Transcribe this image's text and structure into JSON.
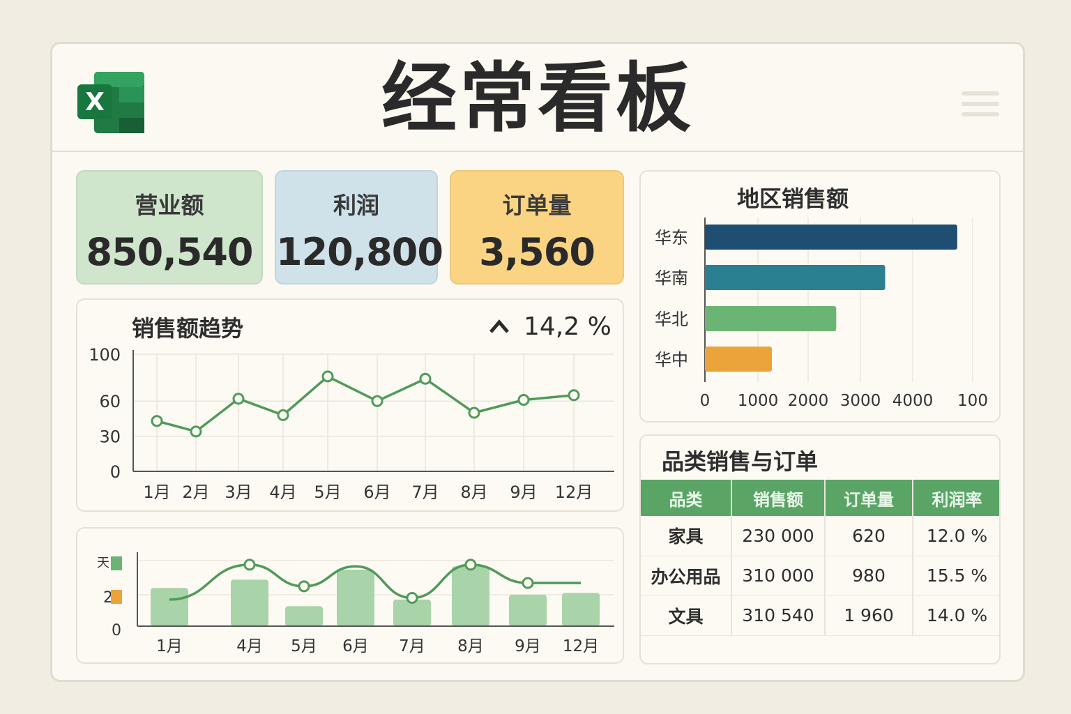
{
  "header": {
    "title": "经常看板",
    "logo_letter": "X"
  },
  "kpis": [
    {
      "label": "营业额",
      "value": "850,540",
      "color": "#cfe6cc"
    },
    {
      "label": "利润",
      "value": "120,800",
      "color": "#cfe2ea"
    },
    {
      "label": "订单量",
      "value": "3,560",
      "color": "#fbd483"
    }
  ],
  "trend": {
    "title": "销售额趋势",
    "change_label": "14,2 %"
  },
  "region": {
    "title": "地区销售额"
  },
  "mix": {
    "legend": [
      "天",
      "2"
    ]
  },
  "category_table": {
    "title": "品类销售与订单",
    "headers": [
      "品类",
      "销售额",
      "订单量",
      "利润率"
    ],
    "rows": [
      [
        "家具",
        "230 000",
        "620",
        "12.0 %"
      ],
      [
        "办公用品",
        "310 000",
        "980",
        "15.5 %"
      ],
      [
        "文具",
        "310 540",
        "1 960",
        "14.0 %"
      ]
    ]
  },
  "colors": {
    "green": "#4f9a5a",
    "dark_blue": "#1f4e73",
    "teal": "#2a7f90",
    "light_green": "#6bb574",
    "orange": "#eba43a",
    "bar_green": "#a9d3a8"
  },
  "chart_data": [
    {
      "type": "line",
      "title": "销售额趋势",
      "x": [
        "1月",
        "2月",
        "3月",
        "4月",
        "5月",
        "6月",
        "7月",
        "8月",
        "9月",
        "12月"
      ],
      "series": [
        {
          "values": [
            43,
            34,
            62,
            48,
            81,
            60,
            79,
            50,
            61,
            65
          ]
        }
      ],
      "yticks": [
        0,
        30,
        60,
        100
      ],
      "ylim": [
        0,
        100
      ],
      "grid": true
    },
    {
      "type": "bar",
      "title": "地区销售额",
      "orientation": "horizontal",
      "categories": [
        "华东",
        "华南",
        "华北",
        "华中"
      ],
      "values": [
        4900,
        3500,
        2550,
        1300
      ],
      "xticks": [
        "0",
        "1000",
        "2000",
        "3000",
        "4000",
        "100"
      ],
      "xlim": [
        0,
        5200
      ],
      "grid": true
    },
    {
      "type": "bar",
      "categories": [
        "1月",
        "4月",
        "5月",
        "6月",
        "7月",
        "8月",
        "9月",
        "12月"
      ],
      "series": [
        {
          "type": "bar",
          "values": [
            2.3,
            2.8,
            1.2,
            3.4,
            1.6,
            3.6,
            1.9,
            2.0
          ]
        },
        {
          "type": "line",
          "values": [
            1.6,
            3.7,
            2.4,
            3.6,
            1.7,
            3.7,
            2.6,
            2.6
          ]
        }
      ],
      "yticks": [
        "0",
        "2"
      ],
      "ylim": [
        0,
        4.2
      ]
    }
  ]
}
